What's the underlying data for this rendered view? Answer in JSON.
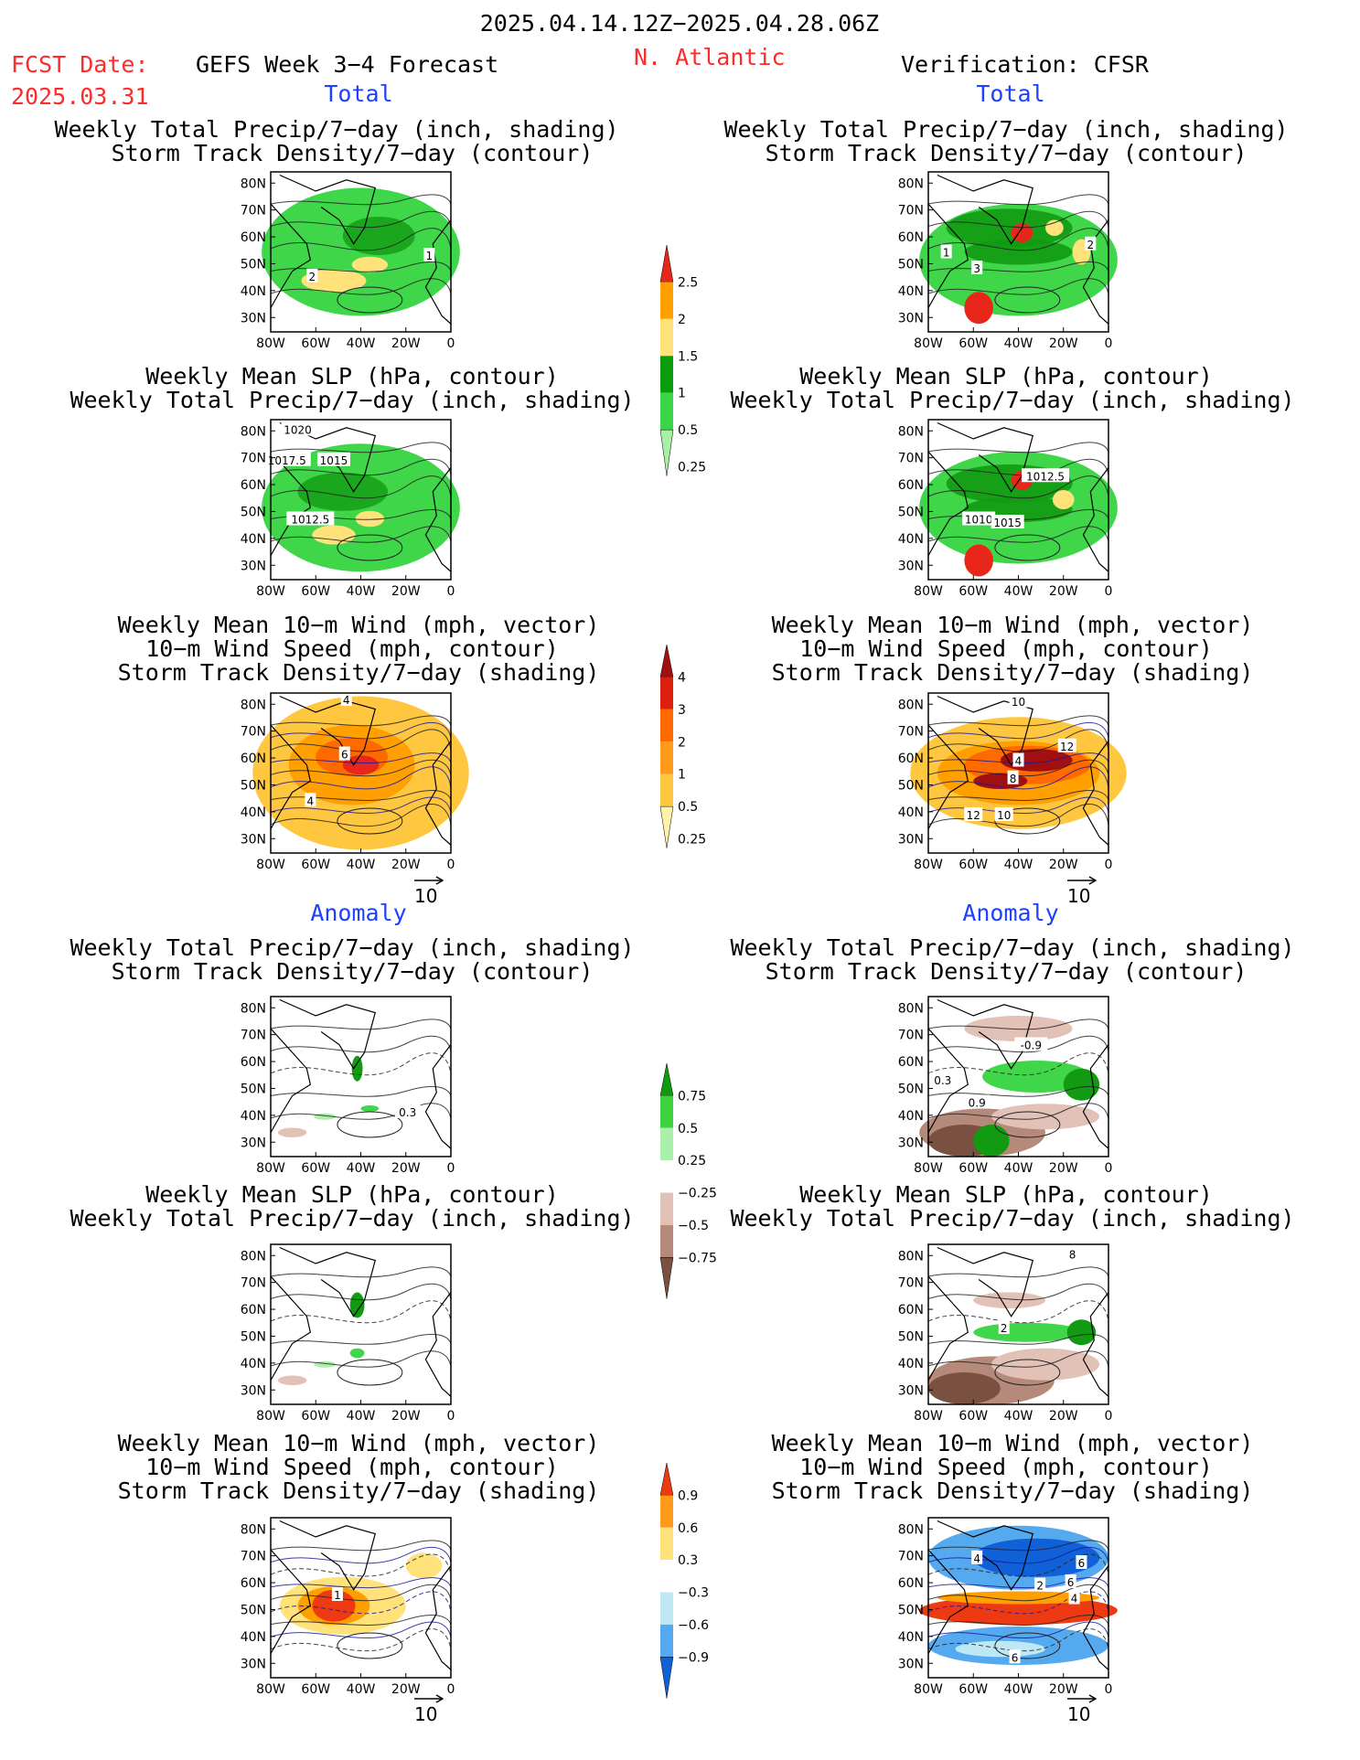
{
  "header": {
    "date_range": "2025.04.14.12Z−2025.04.28.06Z",
    "fcst_label": "FCST Date:",
    "fcst_value": "2025.03.31",
    "model": "GEFS Week 3−4 Forecast",
    "region": "N. Atlantic",
    "verification": "Verification: CFSR"
  },
  "sections": {
    "total": "Total",
    "anomaly": "Anomaly"
  },
  "titles": {
    "precip_track": [
      "Weekly Total Precip/7−day (inch, shading)",
      "Storm Track Density/7−day (contour)"
    ],
    "slp_precip": [
      "Weekly Mean SLP (hPa, contour)",
      "Weekly Total Precip/7−day (inch, shading)"
    ],
    "wind_track": [
      "Weekly Mean 10−m Wind (mph, vector)",
      "10−m Wind Speed (mph, contour)",
      "Storm Track Density/7−day (shading)"
    ]
  },
  "axes": {
    "lat_ticks": [
      "80N",
      "70N",
      "60N",
      "50N",
      "40N",
      "30N"
    ],
    "lon_ticks": [
      "80W",
      "60W",
      "40W",
      "20W",
      "0"
    ]
  },
  "vector_reference": "10",
  "chart_data": [
    {
      "type": "heatmap",
      "panel": "forecast-total-precip-track",
      "title": "Weekly Total Precip/7−day (inch, shading) / Storm Track Density/7−day (contour)",
      "contour_labels": [
        "1",
        "2"
      ]
    },
    {
      "type": "heatmap",
      "panel": "verification-total-precip-track",
      "title": "Weekly Total Precip/7−day (inch, shading) / Storm Track Density/7−day (contour)",
      "contour_labels": [
        "1",
        "2",
        "3"
      ]
    },
    {
      "type": "heatmap",
      "panel": "forecast-total-slp-precip",
      "title": "Weekly Mean SLP (hPa, contour) / Weekly Total Precip/7−day (inch, shading)",
      "contour_labels": [
        "1020",
        "1017.5",
        "1015",
        "1012.5"
      ]
    },
    {
      "type": "heatmap",
      "panel": "verification-total-slp-precip",
      "title": "Weekly Mean SLP (hPa, contour) / Weekly Total Precip/7−day (inch, shading)",
      "contour_labels": [
        "1012.5",
        "1010",
        "1015"
      ]
    },
    {
      "type": "heatmap",
      "panel": "forecast-total-wind-track",
      "title": "Weekly Mean 10−m Wind (mph, vector) / 10−m Wind Speed (mph, contour) / Storm Track Density/7−day (shading)",
      "contour_labels": [
        "4",
        "6",
        "4"
      ]
    },
    {
      "type": "heatmap",
      "panel": "verification-total-wind-track",
      "title": "Weekly Mean 10−m Wind (mph, vector) / 10−m Wind Speed (mph, contour) / Storm Track Density/7−day (shading)",
      "contour_labels": [
        "10",
        "12",
        "4",
        "8",
        "12",
        "10"
      ]
    },
    {
      "type": "heatmap",
      "panel": "forecast-anomaly-precip-track",
      "title": "Weekly Total Precip/7−day (inch, shading) / Storm Track Density/7−day (contour)",
      "contour_labels": [
        "0.3"
      ]
    },
    {
      "type": "heatmap",
      "panel": "verification-anomaly-precip-track",
      "title": "Weekly Total Precip/7−day (inch, shading) / Storm Track Density/7−day (contour)",
      "contour_labels": [
        "-0.9",
        "0.3",
        "0.9"
      ]
    },
    {
      "type": "heatmap",
      "panel": "forecast-anomaly-slp-precip",
      "title": "Weekly Mean SLP (hPa, contour) / Weekly Total Precip/7−day (inch, shading)",
      "contour_labels": []
    },
    {
      "type": "heatmap",
      "panel": "verification-anomaly-slp-precip",
      "title": "Weekly Mean SLP (hPa, contour) / Weekly Total Precip/7−day (inch, shading)",
      "contour_labels": [
        "8",
        "2"
      ]
    },
    {
      "type": "heatmap",
      "panel": "forecast-anomaly-wind-track",
      "title": "Weekly Mean 10−m Wind (mph, vector) / 10−m Wind Speed (mph, contour) / Storm Track Density/7−day (shading)",
      "contour_labels": [
        "1"
      ]
    },
    {
      "type": "heatmap",
      "panel": "verification-anomaly-wind-track",
      "title": "Weekly Mean 10−m Wind (mph, vector) / 10−m Wind Speed (mph, contour) / Storm Track Density/7−day (shading)",
      "contour_labels": [
        "4",
        "6",
        "6",
        "2",
        "4",
        "6"
      ]
    }
  ],
  "colorbars": [
    {
      "name": "precip-total",
      "labels": [
        "2.5",
        "2",
        "1.5",
        "1",
        "0.5",
        "0.25"
      ],
      "colors": [
        "#e8261a",
        "#ff9f00",
        "#ffe27a",
        "#0b9c0b",
        "#39d64a",
        "#a7f0a5"
      ]
    },
    {
      "name": "storm-track-total",
      "labels": [
        "4",
        "3",
        "2",
        "1",
        "0.5",
        "0.25"
      ],
      "colors": [
        "#a01010",
        "#dd1f10",
        "#ff6a00",
        "#ff9a1a",
        "#ffc640",
        "#fff3a8"
      ]
    },
    {
      "name": "precip-anomaly",
      "labels": [
        "0.75",
        "0.5",
        "0.25",
        "−0.25",
        "−0.5",
        "−0.75"
      ],
      "colors": [
        "#0e9a0e",
        "#3fd23f",
        "#aaf0aa",
        "#ffffff",
        "#e2c1b6",
        "#b58a7a",
        "#7a5040"
      ]
    },
    {
      "name": "storm-track-anomaly",
      "labels": [
        "0.9",
        "0.6",
        "0.3",
        "−0.3",
        "−0.6",
        "−0.9"
      ],
      "colors": [
        "#ee3a12",
        "#ff9a1a",
        "#ffe27a",
        "#ffffff",
        "#bfe8f5",
        "#55aaef",
        "#1060d8"
      ]
    }
  ]
}
